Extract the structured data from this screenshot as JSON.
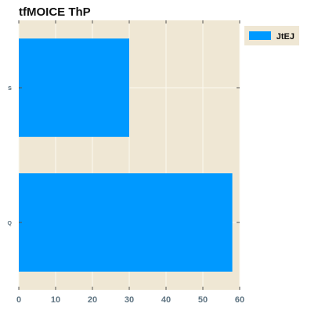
{
  "chart_data": {
    "type": "bar",
    "orientation": "horizontal",
    "title": "tfMOICE ThP",
    "categories": [
      "s",
      "Q"
    ],
    "series": [
      {
        "name": "JtEJ",
        "values": [
          30,
          58
        ]
      }
    ],
    "xlabel": "",
    "ylabel": "",
    "xlim": [
      0,
      60
    ],
    "xticks": [
      "0",
      "10",
      "20",
      "30",
      "40",
      "50",
      "60"
    ],
    "grid": true,
    "legend": "top-right",
    "colors": {
      "bar": "#0099ff",
      "plot_background": "#efe7d4",
      "grid": "#fbf8f0",
      "tick_label": "#5f7482"
    }
  }
}
